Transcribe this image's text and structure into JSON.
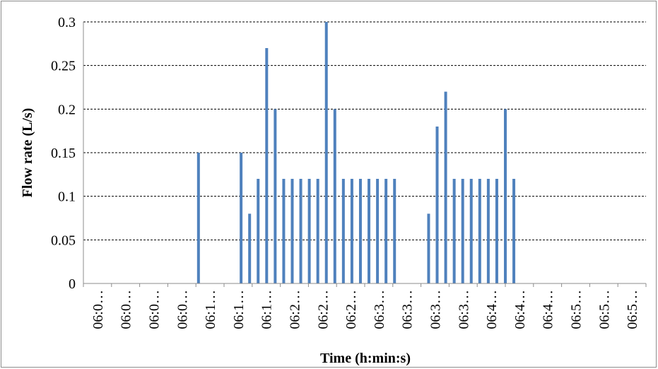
{
  "chart_data": {
    "type": "bar",
    "title": "",
    "xlabel": "Time (h:min:s)",
    "ylabel": "Flow rate (L/s)",
    "ylim": [
      0,
      0.3
    ],
    "yticks": [
      "0",
      "0.05",
      "0.1",
      "0.15",
      "0.2",
      "0.25",
      "0.3"
    ],
    "grid": "horizontal-dashed",
    "legend": "none",
    "bar_color": "#4f81bd",
    "xtick_labels": [
      "06:0…",
      "06:0…",
      "06:0…",
      "06:0…",
      "06:1…",
      "06:1…",
      "06:1…",
      "06:2…",
      "06:2…",
      "06:2…",
      "06:3…",
      "06:3…",
      "06:3…",
      "06:3…",
      "06:4…",
      "06:4…",
      "06:4…",
      "06:5…",
      "06:5…",
      "06:5…"
    ],
    "values": [
      0,
      0,
      0,
      0,
      0,
      0,
      0,
      0,
      0,
      0,
      0,
      0,
      0,
      0.15,
      0,
      0,
      0,
      0,
      0.15,
      0.08,
      0.12,
      0.27,
      0.2,
      0.12,
      0.12,
      0.12,
      0.12,
      0.12,
      0.3,
      0.2,
      0.12,
      0.12,
      0.12,
      0.12,
      0.12,
      0.12,
      0.12,
      0,
      0,
      0,
      0.08,
      0.18,
      0.22,
      0.12,
      0.12,
      0.12,
      0.12,
      0.12,
      0.12,
      0.2,
      0.12,
      0,
      0,
      0,
      0,
      0,
      0,
      0,
      0,
      0,
      0,
      0,
      0,
      0,
      0,
      0
    ]
  }
}
